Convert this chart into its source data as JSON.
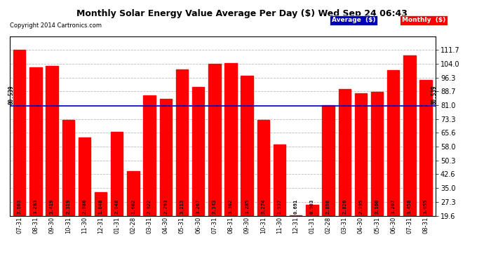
{
  "title": "Monthly Solar Energy Value Average Per Day ($) Wed Sep 24 06:43",
  "copyright": "Copyright 2014 Cartronics.com",
  "average_line": 80.539,
  "average_label": "80.539",
  "bar_color": "#FF0000",
  "average_line_color": "#0000CC",
  "background_color": "#FFFFFF",
  "plot_bg_color": "#FFFFFF",
  "grid_color": "#BBBBBB",
  "ylim": [
    19.6,
    119.0
  ],
  "yticks": [
    19.6,
    27.3,
    35.0,
    42.6,
    50.3,
    58.0,
    65.6,
    73.3,
    81.0,
    88.7,
    96.3,
    104.0,
    111.7
  ],
  "categories": [
    "07-31",
    "08-31",
    "09-30",
    "10-31",
    "11-30",
    "12-31",
    "01-31",
    "02-28",
    "03-31",
    "04-30",
    "05-31",
    "06-30",
    "07-31",
    "08-31",
    "09-30",
    "10-31",
    "11-30",
    "12-31",
    "01-31",
    "02-28",
    "03-31",
    "04-30",
    "05-31",
    "06-30",
    "07-31",
    "08-31"
  ],
  "values": [
    111.7,
    102.0,
    103.0,
    72.8,
    63.0,
    32.5,
    66.0,
    44.5,
    86.5,
    84.5,
    101.0,
    91.0,
    104.0,
    104.5,
    97.5,
    73.0,
    59.0,
    19.9,
    25.5,
    81.0,
    90.0,
    87.5,
    88.5,
    100.5,
    108.5,
    95.0
  ],
  "bar_values": [
    "3.603",
    "3.283",
    "3.419",
    "2.319",
    "2.086",
    "1.048",
    "2.048",
    "1.602",
    "2.822",
    "2.793",
    "3.213",
    "3.267",
    "3.343",
    "3.362",
    "3.285",
    "3.274",
    "1.937",
    "0.691",
    "0.903",
    "2.898",
    "2.826",
    "2.995",
    "3.160",
    "3.207",
    "3.458",
    "3.055"
  ],
  "legend_avg_color": "#0000BB",
  "legend_monthly_color": "#FF0000"
}
